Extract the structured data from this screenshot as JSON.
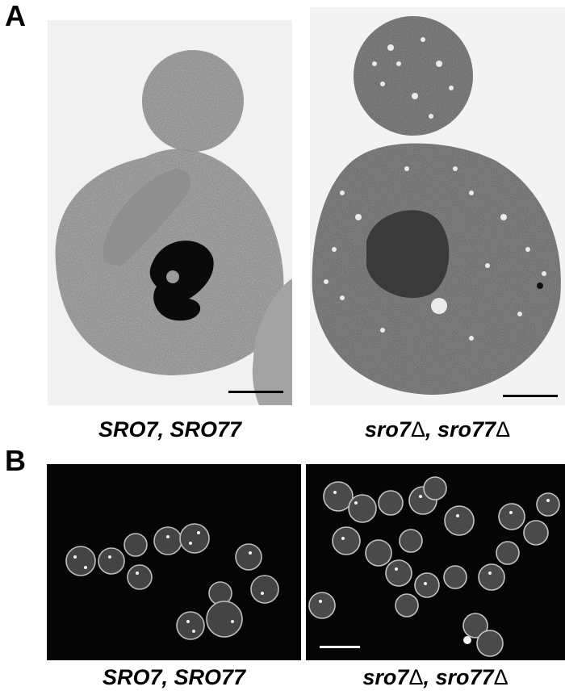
{
  "panel_a": {
    "letter": "A",
    "left": {
      "caption_main": "SRO7, SRO77"
    },
    "right": {
      "caption_part1": "sro7",
      "delta1": "Δ",
      "sep": ", ",
      "caption_part2": "sro77",
      "delta2": "Δ"
    }
  },
  "panel_b": {
    "letter": "B",
    "left": {
      "caption_main": "SRO7, SRO77"
    },
    "right": {
      "caption_part1": "sro7",
      "delta1": "Δ",
      "sep": ", ",
      "caption_part2": "sro77",
      "delta2": "Δ"
    }
  },
  "colors": {
    "em_background": "#f2f2f2",
    "fluor_background": "#050505",
    "scalebar_em": "#000000",
    "scalebar_fluor": "#ffffff"
  }
}
